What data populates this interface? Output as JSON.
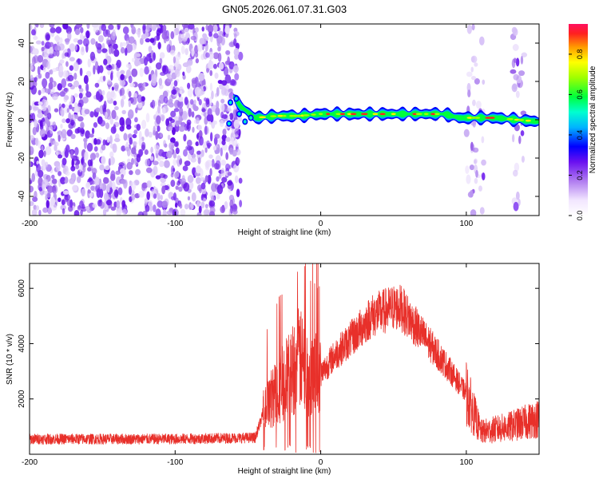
{
  "title": "GN05.2026.061.07.31.G03",
  "chart_data": [
    {
      "type": "heatmap",
      "xlabel": "Height of straight line (km)",
      "ylabel": "Frequency (Hz)",
      "xlim": [
        -200,
        150
      ],
      "ylim": [
        -50,
        50
      ],
      "xticks": [
        -200,
        -100,
        0,
        100
      ],
      "yticks": [
        -40,
        -20,
        0,
        20,
        40
      ],
      "colorbar": {
        "label": "Normalized spectral amplitude",
        "range": [
          0,
          0.95
        ],
        "ticks": [
          0.0,
          0.2,
          0.4,
          0.6,
          0.8
        ]
      },
      "ridge": [
        {
          "x": -60,
          "y": 12
        },
        {
          "x": -55,
          "y": 7
        },
        {
          "x": -45,
          "y": 1
        },
        {
          "x": -30,
          "y": 2
        },
        {
          "x": -15,
          "y": 2
        },
        {
          "x": 0,
          "y": 3
        },
        {
          "x": 20,
          "y": 3
        },
        {
          "x": 50,
          "y": 3
        },
        {
          "x": 85,
          "y": 3
        },
        {
          "x": 95,
          "y": 1
        },
        {
          "x": 120,
          "y": 1
        },
        {
          "x": 150,
          "y": -1
        }
      ],
      "noise_bands": [
        [
          -200,
          -55
        ],
        [
          100,
          112
        ],
        [
          132,
          140
        ]
      ]
    },
    {
      "type": "line",
      "xlabel": "Height of straight line (km)",
      "ylabel": "SNR (10 * v/v)",
      "xlim": [
        -200,
        150
      ],
      "ylim": [
        0,
        6900
      ],
      "xticks": [
        -200,
        -100,
        0,
        100
      ],
      "yticks": [
        2000,
        4000,
        6000
      ],
      "color": "#e8302a",
      "envelope": [
        {
          "x": -200,
          "y": 550
        },
        {
          "x": -100,
          "y": 550
        },
        {
          "x": -45,
          "y": 600
        },
        {
          "x": -38,
          "y": 1700
        },
        {
          "x": -30,
          "y": 2300
        },
        {
          "x": -20,
          "y": 3000
        },
        {
          "x": -15,
          "y": 3500
        },
        {
          "x": -10,
          "y": 3000
        },
        {
          "x": 0,
          "y": 2900
        },
        {
          "x": 10,
          "y": 3600
        },
        {
          "x": 25,
          "y": 4400
        },
        {
          "x": 35,
          "y": 5000
        },
        {
          "x": 50,
          "y": 5300
        },
        {
          "x": 55,
          "y": 5300
        },
        {
          "x": 70,
          "y": 4300
        },
        {
          "x": 85,
          "y": 3300
        },
        {
          "x": 100,
          "y": 2200
        },
        {
          "x": 110,
          "y": 800
        },
        {
          "x": 130,
          "y": 1000
        },
        {
          "x": 150,
          "y": 1300
        }
      ]
    }
  ]
}
